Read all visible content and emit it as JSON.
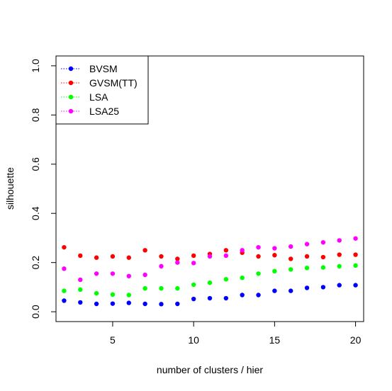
{
  "chart_data": {
    "type": "scatter",
    "title": "",
    "xlabel": "number of clusters / hier",
    "ylabel": "silhouette",
    "xlim": [
      1.5,
      20.5
    ],
    "ylim": [
      -0.04,
      1.04
    ],
    "x_ticks": [
      5,
      10,
      15,
      20
    ],
    "y_ticks": [
      0.0,
      0.2,
      0.4,
      0.6,
      0.8,
      1.0
    ],
    "x_tick_labels": [
      "5",
      "10",
      "15",
      "20"
    ],
    "y_tick_labels": [
      "0.0",
      "0.2",
      "0.4",
      "0.6",
      "0.8",
      "1.0"
    ],
    "grid": false,
    "legend_position": "top-left",
    "x": [
      2,
      3,
      4,
      5,
      6,
      7,
      8,
      9,
      10,
      11,
      12,
      13,
      14,
      15,
      16,
      17,
      18,
      19,
      20
    ],
    "series": [
      {
        "name": "BVSM",
        "color": "#0000ff",
        "values": [
          0.045,
          0.038,
          0.032,
          0.033,
          0.036,
          0.032,
          0.031,
          0.032,
          0.052,
          0.055,
          0.055,
          0.068,
          0.068,
          0.085,
          0.085,
          0.097,
          0.1,
          0.108,
          0.108
        ]
      },
      {
        "name": "GVSM(TT)",
        "color": "#ff0000",
        "values": [
          0.262,
          0.228,
          0.22,
          0.225,
          0.22,
          0.25,
          0.225,
          0.215,
          0.228,
          0.235,
          0.25,
          0.24,
          0.225,
          0.23,
          0.215,
          0.225,
          0.222,
          0.232,
          0.232
        ]
      },
      {
        "name": "LSA",
        "color": "#00ff00",
        "values": [
          0.085,
          0.09,
          0.075,
          0.07,
          0.068,
          0.095,
          0.095,
          0.095,
          0.11,
          0.118,
          0.132,
          0.138,
          0.155,
          0.165,
          0.172,
          0.178,
          0.18,
          0.185,
          0.188
        ]
      },
      {
        "name": "LSA25",
        "color": "#ff00ff",
        "values": [
          0.175,
          0.13,
          0.155,
          0.155,
          0.145,
          0.15,
          0.185,
          0.2,
          0.198,
          0.225,
          0.228,
          0.25,
          0.262,
          0.258,
          0.265,
          0.275,
          0.282,
          0.29,
          0.298
        ]
      }
    ]
  }
}
